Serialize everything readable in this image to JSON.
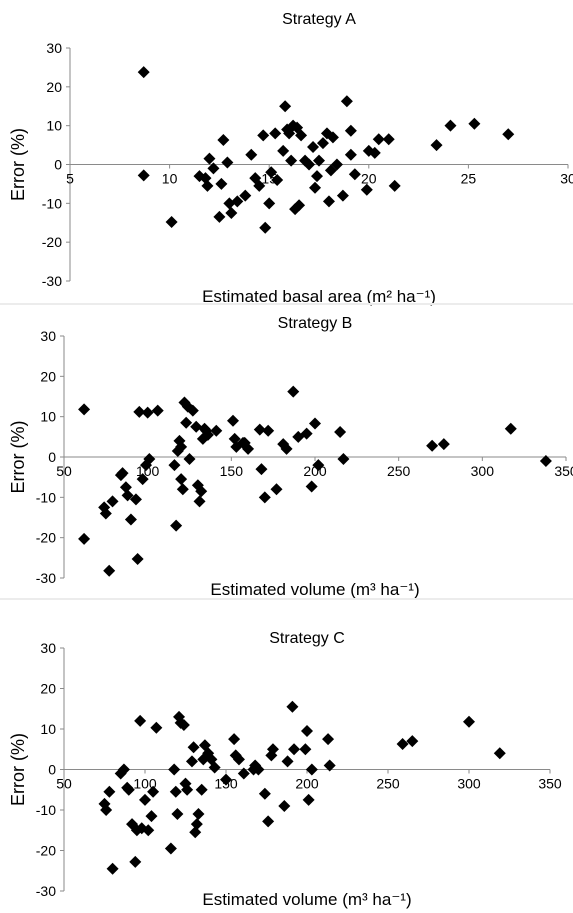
{
  "chart_data": [
    {
      "type": "scatter",
      "title": "Strategy A",
      "ylabel": "Error (%)",
      "xlabel": "Estimated basal area (m² ha⁻¹)",
      "xlim": [
        5,
        30
      ],
      "ylim": [
        -30,
        30
      ],
      "xticks": [
        5,
        10,
        15,
        20,
        25,
        30
      ],
      "yticks": [
        -30,
        -20,
        -10,
        0,
        10,
        20,
        30
      ],
      "grid": false,
      "legend": "none",
      "series": [
        {
          "points": [
            [
              8.7,
              23.8
            ],
            [
              8.7,
              -2.8
            ],
            [
              10.1,
              -14.8
            ],
            [
              11.5,
              -3.0
            ],
            [
              11.8,
              -3.5
            ],
            [
              11.9,
              -5.5
            ],
            [
              12.0,
              1.5
            ],
            [
              12.2,
              -1.0
            ],
            [
              12.5,
              -13.5
            ],
            [
              12.6,
              -5.0
            ],
            [
              12.7,
              6.3
            ],
            [
              12.9,
              0.5
            ],
            [
              13.0,
              -10.0
            ],
            [
              13.1,
              -12.5
            ],
            [
              13.4,
              -9.5
            ],
            [
              13.8,
              -8.0
            ],
            [
              14.1,
              2.5
            ],
            [
              14.3,
              -3.5
            ],
            [
              14.5,
              -5.5
            ],
            [
              14.7,
              7.5
            ],
            [
              14.8,
              -16.3
            ],
            [
              15.0,
              -10.0
            ],
            [
              15.1,
              -2.0
            ],
            [
              15.3,
              8.0
            ],
            [
              15.4,
              -4.0
            ],
            [
              15.7,
              3.5
            ],
            [
              15.8,
              15.0
            ],
            [
              15.9,
              9.0
            ],
            [
              16.0,
              8.0
            ],
            [
              16.1,
              1.0
            ],
            [
              16.2,
              10.0
            ],
            [
              16.3,
              -11.5
            ],
            [
              16.4,
              9.5
            ],
            [
              16.5,
              -10.5
            ],
            [
              16.6,
              7.5
            ],
            [
              16.8,
              1.0
            ],
            [
              17.0,
              0.0
            ],
            [
              17.2,
              4.5
            ],
            [
              17.3,
              -6.0
            ],
            [
              17.4,
              -3.0
            ],
            [
              17.5,
              1.0
            ],
            [
              17.7,
              5.5
            ],
            [
              17.9,
              8.0
            ],
            [
              18.0,
              -9.5
            ],
            [
              18.1,
              -1.5
            ],
            [
              18.2,
              7.0
            ],
            [
              18.4,
              0.0
            ],
            [
              18.7,
              -8.0
            ],
            [
              18.9,
              16.3
            ],
            [
              19.1,
              2.5
            ],
            [
              19.1,
              8.7
            ],
            [
              19.3,
              -2.5
            ],
            [
              19.9,
              -6.5
            ],
            [
              20.0,
              3.5
            ],
            [
              20.3,
              3.0
            ],
            [
              20.5,
              6.5
            ],
            [
              21.0,
              6.5
            ],
            [
              21.3,
              -5.5
            ],
            [
              23.4,
              5.0
            ],
            [
              24.1,
              10.0
            ],
            [
              25.3,
              10.5
            ],
            [
              27.0,
              7.8
            ]
          ]
        }
      ]
    },
    {
      "type": "scatter",
      "title": "Strategy B",
      "ylabel": "Error (%)",
      "xlabel": "Estimated volume (m³ ha⁻¹)",
      "xlim": [
        50,
        350
      ],
      "ylim": [
        -30,
        30
      ],
      "xticks": [
        50,
        100,
        150,
        200,
        250,
        300,
        350
      ],
      "yticks": [
        -30,
        -20,
        -10,
        0,
        10,
        20,
        30
      ],
      "grid": false,
      "legend": "none",
      "series": [
        {
          "points": [
            [
              62,
              11.8
            ],
            [
              62,
              -20.3
            ],
            [
              74,
              -12.5
            ],
            [
              75,
              -14.0
            ],
            [
              77,
              -28.2
            ],
            [
              79,
              -11.0
            ],
            [
              84,
              -4.5
            ],
            [
              85,
              -4.0
            ],
            [
              87,
              -7.5
            ],
            [
              88,
              -9.5
            ],
            [
              90,
              -15.5
            ],
            [
              93,
              -10.5
            ],
            [
              94,
              -25.3
            ],
            [
              95,
              11.2
            ],
            [
              97,
              -5.5
            ],
            [
              99,
              -2.0
            ],
            [
              100,
              11.0
            ],
            [
              101,
              -0.5
            ],
            [
              106,
              11.5
            ],
            [
              116,
              -2.0
            ],
            [
              117,
              -17.0
            ],
            [
              118,
              1.5
            ],
            [
              119,
              4.0
            ],
            [
              120,
              -5.5
            ],
            [
              120,
              2.5
            ],
            [
              121,
              -8.0
            ],
            [
              122,
              13.5
            ],
            [
              123,
              8.5
            ],
            [
              124,
              12.5
            ],
            [
              125,
              -0.5
            ],
            [
              127,
              11.5
            ],
            [
              129,
              7.5
            ],
            [
              130,
              -7.0
            ],
            [
              131,
              -11.0
            ],
            [
              132,
              -8.5
            ],
            [
              133,
              4.5
            ],
            [
              134,
              7.0
            ],
            [
              135,
              6.5
            ],
            [
              136,
              5.5
            ],
            [
              141,
              6.5
            ],
            [
              151,
              9.0
            ],
            [
              152,
              4.5
            ],
            [
              153,
              2.5
            ],
            [
              157,
              3.5
            ],
            [
              158,
              3.5
            ],
            [
              160,
              2.0
            ],
            [
              167,
              6.8
            ],
            [
              168,
              -3.0
            ],
            [
              170,
              -10.0
            ],
            [
              172,
              6.5
            ],
            [
              177,
              -8.0
            ],
            [
              181,
              3.2
            ],
            [
              183,
              2.0
            ],
            [
              187,
              16.2
            ],
            [
              190,
              5.0
            ],
            [
              195,
              5.8
            ],
            [
              198,
              -7.3
            ],
            [
              200,
              8.3
            ],
            [
              202,
              -2.0
            ],
            [
              215,
              6.2
            ],
            [
              217,
              -0.5
            ],
            [
              270,
              2.8
            ],
            [
              277,
              3.2
            ],
            [
              317,
              7.0
            ],
            [
              338,
              -1.0
            ]
          ]
        }
      ]
    },
    {
      "type": "scatter",
      "title": "Strategy C",
      "ylabel": "Error (%)",
      "xlabel": "Estimated volume (m³ ha⁻¹)",
      "xlim": [
        50,
        350
      ],
      "ylim": [
        -30,
        30
      ],
      "xticks": [
        50,
        100,
        150,
        200,
        250,
        300,
        350
      ],
      "yticks": [
        -30,
        -20,
        -10,
        0,
        10,
        20,
        30
      ],
      "grid": false,
      "legend": "none",
      "series": [
        {
          "points": [
            [
              75,
              -8.5
            ],
            [
              76,
              -10.0
            ],
            [
              78,
              -5.5
            ],
            [
              80,
              -24.5
            ],
            [
              85,
              -1.0
            ],
            [
              87,
              0.0
            ],
            [
              89,
              -4.5
            ],
            [
              90,
              -5.0
            ],
            [
              92,
              -13.5
            ],
            [
              94,
              -22.8
            ],
            [
              95,
              -15.0
            ],
            [
              97,
              12.0
            ],
            [
              98,
              -14.5
            ],
            [
              100,
              -7.5
            ],
            [
              102,
              -15.0
            ],
            [
              104,
              -11.5
            ],
            [
              105,
              -5.5
            ],
            [
              107,
              10.3
            ],
            [
              116,
              -19.5
            ],
            [
              118,
              0.0
            ],
            [
              119,
              -5.5
            ],
            [
              120,
              -11.0
            ],
            [
              121,
              13.0
            ],
            [
              122,
              11.5
            ],
            [
              124,
              11.0
            ],
            [
              125,
              -3.5
            ],
            [
              126,
              -5.0
            ],
            [
              129,
              2.0
            ],
            [
              130,
              5.5
            ],
            [
              131,
              -15.5
            ],
            [
              132,
              -13.5
            ],
            [
              133,
              -11.0
            ],
            [
              135,
              -5.0
            ],
            [
              136,
              2.5
            ],
            [
              137,
              6.0
            ],
            [
              139,
              4.0
            ],
            [
              141,
              2.5
            ],
            [
              143,
              0.5
            ],
            [
              150,
              -2.5
            ],
            [
              155,
              7.5
            ],
            [
              156,
              3.5
            ],
            [
              158,
              2.5
            ],
            [
              161,
              -1.0
            ],
            [
              167,
              0.0
            ],
            [
              168,
              1.0
            ],
            [
              170,
              0.0
            ],
            [
              174,
              -6.0
            ],
            [
              176,
              -12.8
            ],
            [
              178,
              3.5
            ],
            [
              179,
              5.0
            ],
            [
              186,
              -9.0
            ],
            [
              188,
              2.0
            ],
            [
              191,
              15.5
            ],
            [
              192,
              5.0
            ],
            [
              199,
              5.0
            ],
            [
              200,
              9.5
            ],
            [
              201,
              -7.5
            ],
            [
              203,
              0.0
            ],
            [
              213,
              7.5
            ],
            [
              214,
              1.0
            ],
            [
              259,
              6.3
            ],
            [
              265,
              7.0
            ],
            [
              300,
              11.8
            ],
            [
              319,
              4.0
            ]
          ]
        }
      ]
    }
  ]
}
